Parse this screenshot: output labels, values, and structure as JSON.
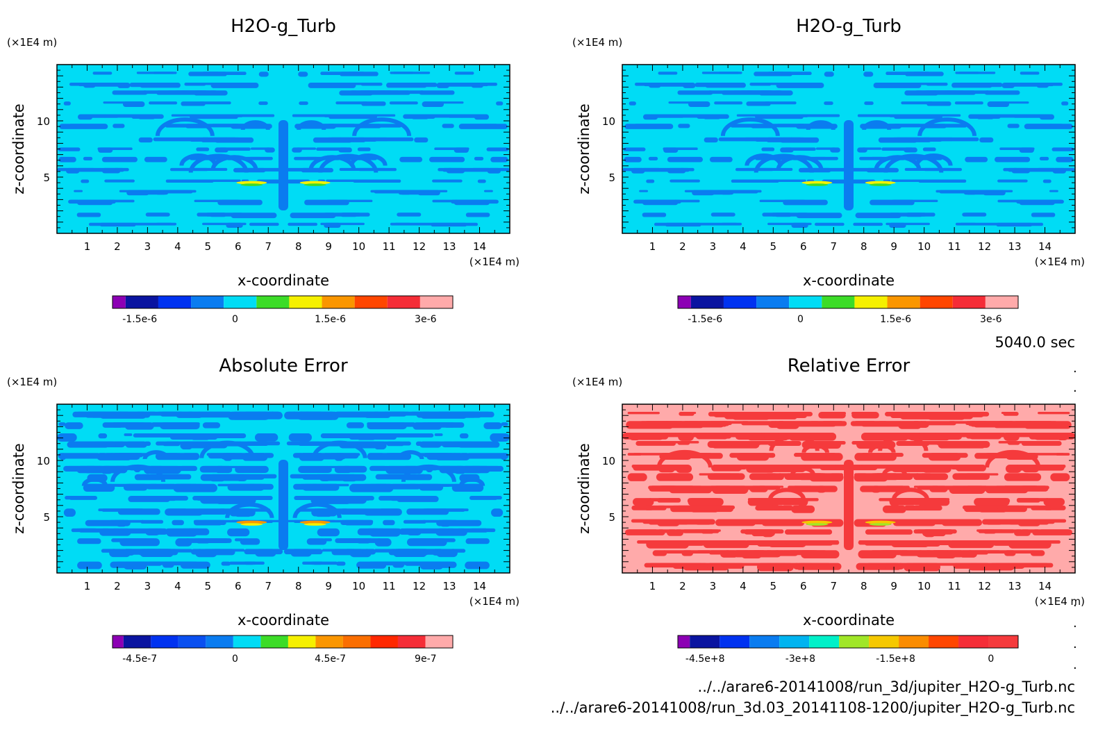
{
  "chart_data": [
    {
      "type": "heatmap",
      "title": "H2O-g_Turb",
      "xlabel": "x-coordinate",
      "ylabel": "z-coordinate",
      "xunit": "(×1E4 m)",
      "yunit": "(×1E4 m)",
      "xlim": [
        0,
        15
      ],
      "ylim": [
        0,
        15
      ],
      "xticks": [
        "1",
        "2",
        "3",
        "4",
        "5",
        "6",
        "7",
        "8",
        "9",
        "10",
        "11",
        "12",
        "13",
        "14"
      ],
      "yticks": [
        "5",
        "10"
      ],
      "background_color": "#00dcf5",
      "pattern_color": "#0a7cf0",
      "colorbar": {
        "colors": [
          "#8c00b4",
          "#0a14a0",
          "#0032f0",
          "#0a7cf0",
          "#00dcf5",
          "#3cdc28",
          "#f5f000",
          "#fa9600",
          "#ff4600",
          "#f52d37",
          "#ffaaaa"
        ],
        "labels": [
          "-1.5e-6",
          "0",
          "1.5e-6",
          "3e-6"
        ]
      }
    },
    {
      "type": "heatmap",
      "title": "H2O-g_Turb",
      "xlabel": "x-coordinate",
      "ylabel": "z-coordinate",
      "xunit": "(×1E4 m)",
      "yunit": "(×1E4 m)",
      "xlim": [
        0,
        15
      ],
      "ylim": [
        0,
        15
      ],
      "xticks": [
        "1",
        "2",
        "3",
        "4",
        "5",
        "6",
        "7",
        "8",
        "9",
        "10",
        "11",
        "12",
        "13",
        "14"
      ],
      "yticks": [
        "5",
        "10"
      ],
      "background_color": "#00dcf5",
      "pattern_color": "#0a7cf0",
      "colorbar": {
        "colors": [
          "#8c00b4",
          "#0a14a0",
          "#0032f0",
          "#0a7cf0",
          "#00dcf5",
          "#3cdc28",
          "#f5f000",
          "#fa9600",
          "#ff4600",
          "#f52d37",
          "#ffaaaa"
        ],
        "labels": [
          "-1.5e-6",
          "0",
          "1.5e-6",
          "3e-6"
        ]
      }
    },
    {
      "type": "heatmap",
      "title": "Absolute Error",
      "xlabel": "x-coordinate",
      "ylabel": "z-coordinate",
      "xunit": "(×1E4 m)",
      "yunit": "(×1E4 m)",
      "xlim": [
        0,
        15
      ],
      "ylim": [
        0,
        15
      ],
      "xticks": [
        "1",
        "2",
        "3",
        "4",
        "5",
        "6",
        "7",
        "8",
        "9",
        "10",
        "11",
        "12",
        "13",
        "14"
      ],
      "yticks": [
        "5",
        "10"
      ],
      "background_color": "#00dcf5",
      "pattern_color": "#0a7cf0",
      "colorbar": {
        "colors": [
          "#8c00b4",
          "#0a14a0",
          "#0032f0",
          "#0a50f0",
          "#0a7cf0",
          "#00dcf5",
          "#3cdc28",
          "#f5f000",
          "#fa9600",
          "#fa6e00",
          "#ff2800",
          "#f52d37",
          "#ffaaaa"
        ],
        "labels": [
          "-4.5e-7",
          "0",
          "4.5e-7",
          "9e-7"
        ]
      }
    },
    {
      "type": "heatmap",
      "title": "Relative Error",
      "xlabel": "x-coordinate",
      "ylabel": "z-coordinate",
      "xunit": "(×1E4 m)",
      "yunit": "(×1E4 m)",
      "xlim": [
        0,
        15
      ],
      "ylim": [
        0,
        15
      ],
      "xticks": [
        "1",
        "2",
        "3",
        "4",
        "5",
        "6",
        "7",
        "8",
        "9",
        "10",
        "11",
        "12",
        "13",
        "14"
      ],
      "yticks": [
        "5",
        "10"
      ],
      "background_color": "#ffaaaa",
      "pattern_color": "#f53a3c",
      "colorbar": {
        "colors": [
          "#8c00b4",
          "#0a14a0",
          "#0032f0",
          "#0a7cf0",
          "#00b4f0",
          "#00f0c8",
          "#a0e628",
          "#f5c800",
          "#fa8c00",
          "#ff4600",
          "#f52d37",
          "#f53a3c"
        ],
        "labels": [
          "-4.5e+8",
          "-3e+8",
          "-1.5e+8",
          "0"
        ]
      }
    }
  ],
  "info": {
    "time": "5040.0 sec",
    "file1": "../../arare6-20141008/run_3d/jupiter_H2O-g_Turb.nc",
    "file2": "../../arare6-20141008/run_3d.03_20141108-1200/jupiter_H2O-g_Turb.nc"
  }
}
